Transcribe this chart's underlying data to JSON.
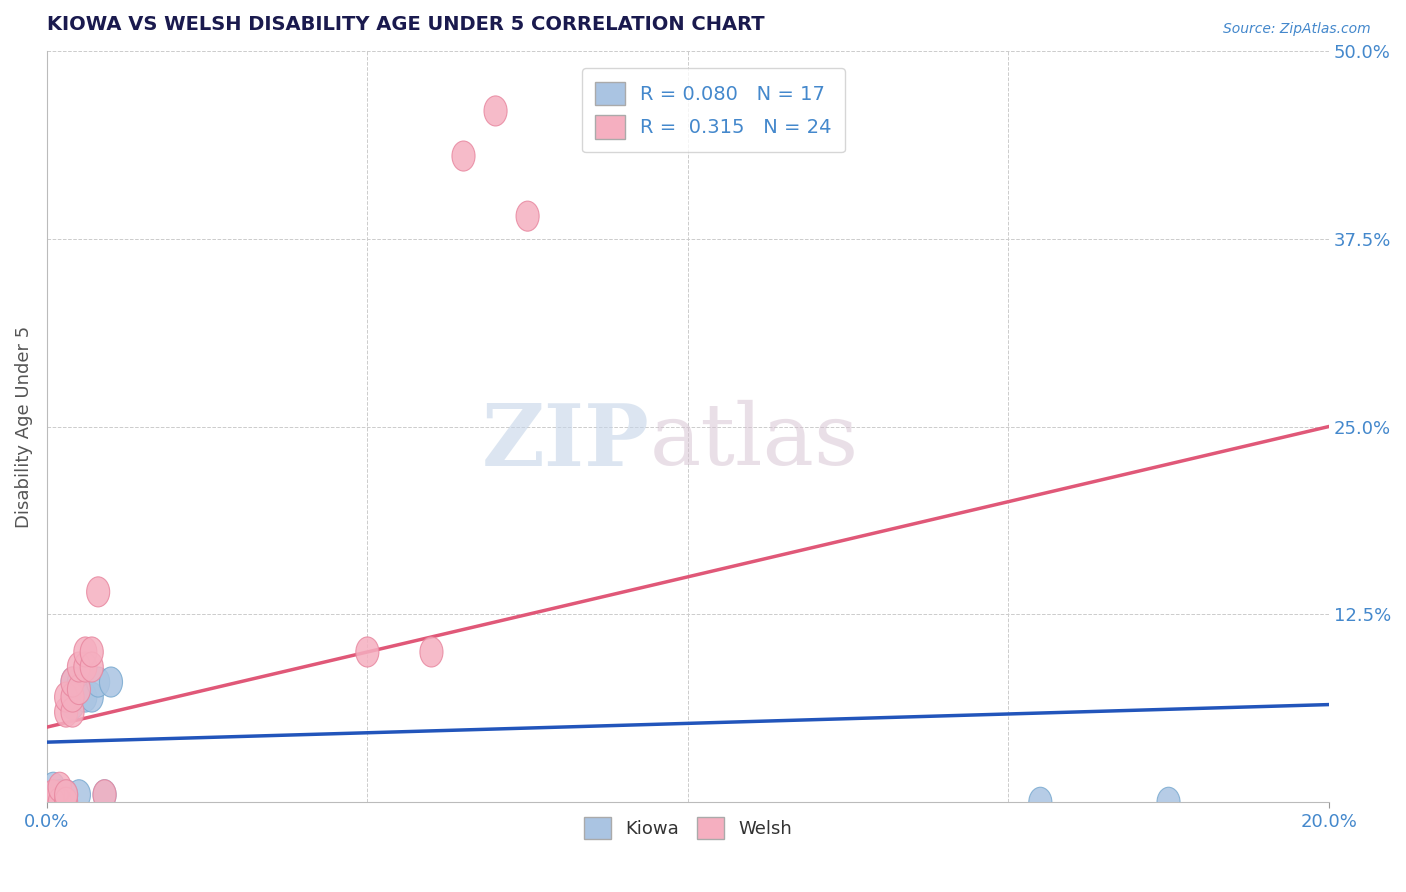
{
  "title": "KIOWA VS WELSH DISABILITY AGE UNDER 5 CORRELATION CHART",
  "source": "Source: ZipAtlas.com",
  "ylabel": "Disability Age Under 5",
  "xlim": [
    0.0,
    0.2
  ],
  "ylim": [
    0.0,
    0.5
  ],
  "kiowa_R": 0.08,
  "kiowa_N": 17,
  "welsh_R": 0.315,
  "welsh_N": 24,
  "kiowa_color": "#aac4e2",
  "welsh_color": "#f5afc0",
  "kiowa_edge_color": "#7aaad0",
  "welsh_edge_color": "#e888a0",
  "kiowa_line_color": "#2255bb",
  "welsh_line_color": "#e05878",
  "title_color": "#1a1a4e",
  "axis_label_color": "#4488cc",
  "grid_color": "#cccccc",
  "background_color": "#ffffff",
  "watermark_zip_color": "#c8d8ee",
  "watermark_atlas_color": "#d8c8d8",
  "kiowa_x": [
    0.001,
    0.001,
    0.002,
    0.002,
    0.003,
    0.003,
    0.004,
    0.004,
    0.005,
    0.005,
    0.006,
    0.007,
    0.008,
    0.009,
    0.01,
    0.155,
    0.175
  ],
  "kiowa_y": [
    0.0,
    0.01,
    0.0,
    0.005,
    0.005,
    0.005,
    0.065,
    0.08,
    0.005,
    0.08,
    0.07,
    0.07,
    0.08,
    0.005,
    0.08,
    0.0,
    0.0
  ],
  "welsh_x": [
    0.001,
    0.001,
    0.002,
    0.002,
    0.003,
    0.003,
    0.003,
    0.003,
    0.004,
    0.004,
    0.004,
    0.005,
    0.005,
    0.006,
    0.006,
    0.007,
    0.007,
    0.008,
    0.009,
    0.05,
    0.06,
    0.065,
    0.07,
    0.075
  ],
  "welsh_y": [
    0.0,
    0.005,
    0.0,
    0.01,
    0.0,
    0.005,
    0.06,
    0.07,
    0.06,
    0.07,
    0.08,
    0.075,
    0.09,
    0.09,
    0.1,
    0.09,
    0.1,
    0.14,
    0.005,
    0.1,
    0.1,
    0.43,
    0.46,
    0.39
  ],
  "kiowa_line_x": [
    0.0,
    0.2
  ],
  "kiowa_line_y": [
    0.04,
    0.065
  ],
  "welsh_line_x": [
    0.0,
    0.2
  ],
  "welsh_line_y": [
    0.05,
    0.25
  ]
}
